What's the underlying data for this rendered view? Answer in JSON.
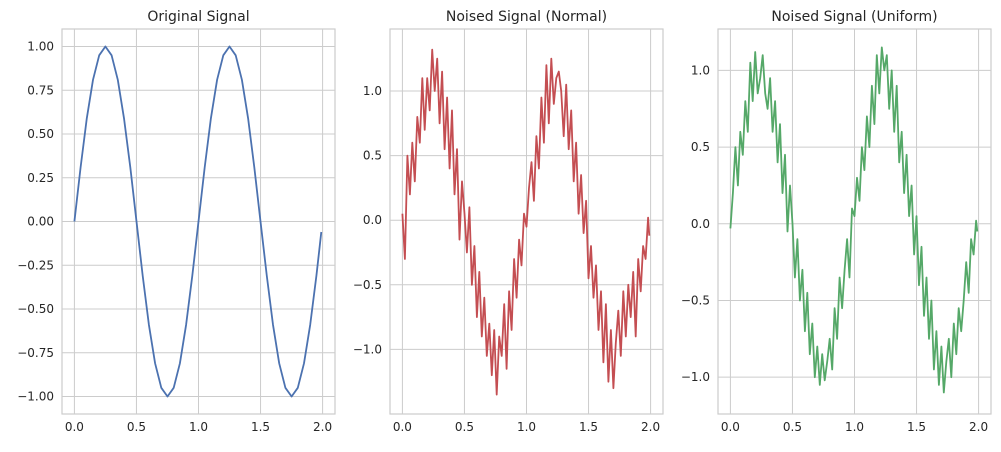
{
  "chart_data": [
    {
      "type": "line",
      "title": "Original Signal",
      "color": "#4c72b0",
      "xlim": [
        -0.1,
        2.1
      ],
      "ylim": [
        -1.1,
        1.1
      ],
      "xticks": [
        0,
        0.5,
        1,
        1.5,
        2
      ],
      "xtick_labels": [
        "0.0",
        "0.5",
        "1.0",
        "1.5",
        "2.0"
      ],
      "yticks": [
        -1,
        -0.75,
        -0.5,
        -0.25,
        0,
        0.25,
        0.5,
        0.75,
        1
      ],
      "ytick_labels": [
        "−1.00",
        "−0.75",
        "−0.50",
        "−0.25",
        "0.00",
        "0.25",
        "0.50",
        "0.75",
        "1.00"
      ],
      "grid": true,
      "x": [
        0.0,
        0.05,
        0.1,
        0.15,
        0.2,
        0.25,
        0.3,
        0.35,
        0.4,
        0.45,
        0.5,
        0.55,
        0.6,
        0.65,
        0.7,
        0.75,
        0.8,
        0.85,
        0.9,
        0.95,
        1.0,
        1.05,
        1.1,
        1.15,
        1.2,
        1.25,
        1.3,
        1.35,
        1.4,
        1.45,
        1.5,
        1.55,
        1.6,
        1.65,
        1.7,
        1.75,
        1.8,
        1.85,
        1.9,
        1.95,
        1.99
      ],
      "y": [
        0.0,
        0.31,
        0.59,
        0.81,
        0.95,
        1.0,
        0.95,
        0.81,
        0.59,
        0.31,
        0.0,
        -0.31,
        -0.59,
        -0.81,
        -0.95,
        -1.0,
        -0.95,
        -0.81,
        -0.59,
        -0.31,
        0.0,
        0.31,
        0.59,
        0.81,
        0.95,
        1.0,
        0.95,
        0.81,
        0.59,
        0.31,
        0.0,
        -0.31,
        -0.59,
        -0.81,
        -0.95,
        -1.0,
        -0.95,
        -0.81,
        -0.59,
        -0.31,
        -0.06
      ]
    },
    {
      "type": "line",
      "title": "Noised Signal (Normal)",
      "color": "#c44e52",
      "xlim": [
        -0.1,
        2.1
      ],
      "ylim": [
        -1.5,
        1.48
      ],
      "xticks": [
        0,
        0.5,
        1,
        1.5,
        2
      ],
      "xtick_labels": [
        "0.0",
        "0.5",
        "1.0",
        "1.5",
        "2.0"
      ],
      "yticks": [
        -1,
        -0.5,
        0,
        0.5,
        1
      ],
      "ytick_labels": [
        "−1.0",
        "−0.5",
        "0.0",
        "0.5",
        "1.0"
      ],
      "grid": true,
      "x": [
        0.0,
        0.02,
        0.04,
        0.06,
        0.08,
        0.1,
        0.12,
        0.14,
        0.16,
        0.18,
        0.2,
        0.22,
        0.24,
        0.26,
        0.28,
        0.3,
        0.32,
        0.34,
        0.36,
        0.38,
        0.4,
        0.42,
        0.44,
        0.46,
        0.48,
        0.5,
        0.52,
        0.54,
        0.56,
        0.58,
        0.6,
        0.62,
        0.64,
        0.66,
        0.68,
        0.7,
        0.72,
        0.74,
        0.76,
        0.78,
        0.8,
        0.82,
        0.84,
        0.86,
        0.88,
        0.9,
        0.92,
        0.94,
        0.96,
        0.98,
        1.0,
        1.02,
        1.04,
        1.06,
        1.08,
        1.1,
        1.12,
        1.14,
        1.16,
        1.18,
        1.2,
        1.22,
        1.24,
        1.26,
        1.28,
        1.3,
        1.32,
        1.34,
        1.36,
        1.38,
        1.4,
        1.42,
        1.44,
        1.46,
        1.48,
        1.5,
        1.52,
        1.54,
        1.56,
        1.58,
        1.6,
        1.62,
        1.64,
        1.66,
        1.68,
        1.7,
        1.72,
        1.74,
        1.76,
        1.78,
        1.8,
        1.82,
        1.84,
        1.86,
        1.88,
        1.9,
        1.92,
        1.94,
        1.96,
        1.98,
        1.99
      ],
      "y": [
        0.05,
        -0.3,
        0.5,
        0.2,
        0.6,
        0.3,
        0.8,
        0.6,
        1.1,
        0.7,
        1.1,
        0.85,
        1.32,
        1.0,
        1.25,
        0.75,
        1.15,
        0.55,
        0.95,
        0.4,
        0.85,
        0.2,
        0.55,
        -0.15,
        0.3,
        0.05,
        -0.25,
        0.1,
        -0.5,
        -0.2,
        -0.75,
        -0.4,
        -0.9,
        -0.6,
        -1.05,
        -0.8,
        -1.2,
        -0.85,
        -1.35,
        -0.9,
        -1.05,
        -0.65,
        -1.15,
        -0.55,
        -0.85,
        -0.3,
        -0.6,
        -0.15,
        -0.35,
        0.05,
        -0.05,
        0.25,
        0.45,
        0.15,
        0.65,
        0.4,
        0.95,
        0.6,
        1.2,
        0.75,
        1.25,
        0.9,
        1.1,
        1.15,
        1.0,
        0.65,
        1.05,
        0.55,
        0.85,
        0.3,
        0.6,
        0.05,
        0.35,
        -0.1,
        0.15,
        -0.45,
        -0.2,
        -0.6,
        -0.35,
        -0.85,
        -0.55,
        -1.1,
        -0.65,
        -1.25,
        -0.85,
        -1.3,
        -0.95,
        -0.7,
        -1.05,
        -0.55,
        -0.9,
        -0.5,
        -0.75,
        -0.4,
        -0.9,
        -0.3,
        -0.55,
        -0.2,
        -0.3,
        0.02,
        -0.12
      ]
    },
    {
      "type": "line",
      "title": "Noised Signal (Uniform)",
      "color": "#55a868",
      "xlim": [
        -0.1,
        2.1
      ],
      "ylim": [
        -1.24,
        1.27
      ],
      "xticks": [
        0,
        0.5,
        1,
        1.5,
        2
      ],
      "xtick_labels": [
        "0.0",
        "0.5",
        "1.0",
        "1.5",
        "2.0"
      ],
      "yticks": [
        -1,
        -0.5,
        0,
        0.5,
        1
      ],
      "ytick_labels": [
        "−1.0",
        "−0.5",
        "0.0",
        "0.5",
        "1.0"
      ],
      "grid": true,
      "x": [
        0.0,
        0.02,
        0.04,
        0.06,
        0.08,
        0.1,
        0.12,
        0.14,
        0.16,
        0.18,
        0.2,
        0.22,
        0.24,
        0.26,
        0.28,
        0.3,
        0.32,
        0.34,
        0.36,
        0.38,
        0.4,
        0.42,
        0.44,
        0.46,
        0.48,
        0.5,
        0.52,
        0.54,
        0.56,
        0.58,
        0.6,
        0.62,
        0.64,
        0.66,
        0.68,
        0.7,
        0.72,
        0.74,
        0.76,
        0.78,
        0.8,
        0.82,
        0.84,
        0.86,
        0.88,
        0.9,
        0.92,
        0.94,
        0.96,
        0.98,
        1.0,
        1.02,
        1.04,
        1.06,
        1.08,
        1.1,
        1.12,
        1.14,
        1.16,
        1.18,
        1.2,
        1.22,
        1.24,
        1.26,
        1.28,
        1.3,
        1.32,
        1.34,
        1.36,
        1.38,
        1.4,
        1.42,
        1.44,
        1.46,
        1.48,
        1.5,
        1.52,
        1.54,
        1.56,
        1.58,
        1.6,
        1.62,
        1.64,
        1.66,
        1.68,
        1.7,
        1.72,
        1.74,
        1.76,
        1.78,
        1.8,
        1.82,
        1.84,
        1.86,
        1.88,
        1.9,
        1.92,
        1.94,
        1.96,
        1.98,
        1.99
      ],
      "y": [
        -0.03,
        0.2,
        0.5,
        0.25,
        0.6,
        0.45,
        0.8,
        0.6,
        1.05,
        0.8,
        1.12,
        0.85,
        0.95,
        1.1,
        0.85,
        0.75,
        0.95,
        0.6,
        0.8,
        0.4,
        0.65,
        0.2,
        0.45,
        -0.05,
        0.25,
        0.0,
        -0.35,
        -0.1,
        -0.5,
        -0.3,
        -0.7,
        -0.45,
        -0.85,
        -0.65,
        -1.0,
        -0.8,
        -1.05,
        -0.85,
        -1.02,
        -0.9,
        -0.75,
        -0.95,
        -0.55,
        -0.75,
        -0.35,
        -0.55,
        -0.3,
        -0.1,
        -0.35,
        0.1,
        0.05,
        0.3,
        0.15,
        0.5,
        0.35,
        0.7,
        0.5,
        0.9,
        0.65,
        1.1,
        0.85,
        1.15,
        1.0,
        1.1,
        0.75,
        1.0,
        0.6,
        0.9,
        0.4,
        0.6,
        0.2,
        0.45,
        0.05,
        0.25,
        -0.2,
        0.05,
        -0.4,
        -0.15,
        -0.6,
        -0.35,
        -0.75,
        -0.5,
        -0.95,
        -0.7,
        -1.05,
        -0.8,
        -1.1,
        -0.9,
        -0.75,
        -1.0,
        -0.65,
        -0.85,
        -0.55,
        -0.7,
        -0.5,
        -0.25,
        -0.45,
        -0.1,
        -0.2,
        0.02,
        -0.05
      ]
    }
  ]
}
